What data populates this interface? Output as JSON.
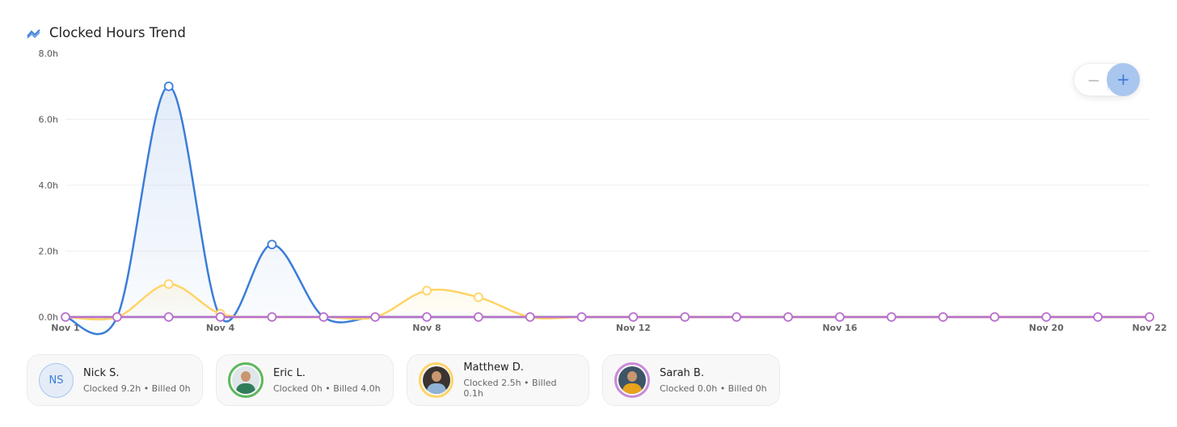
{
  "header": {
    "title": "Clocked Hours Trend",
    "icon": "trending-icon"
  },
  "zoom_controls": {
    "minus": "−",
    "plus": "+"
  },
  "chart_data": {
    "type": "line",
    "title": "Clocked Hours Trend",
    "x": [
      "Nov 1",
      "Nov 2",
      "Nov 3",
      "Nov 4",
      "Nov 5",
      "Nov 6",
      "Nov 7",
      "Nov 8",
      "Nov 9",
      "Nov 10",
      "Nov 11",
      "Nov 12",
      "Nov 13",
      "Nov 14",
      "Nov 15",
      "Nov 16",
      "Nov 17",
      "Nov 18",
      "Nov 19",
      "Nov 20",
      "Nov 21",
      "Nov 22"
    ],
    "x_tick_labels": [
      "Nov 1",
      "Nov 4",
      "Nov 8",
      "Nov 12",
      "Nov 16",
      "Nov 20",
      "Nov 22"
    ],
    "y_tick_labels": [
      "0.0h",
      "2.0h",
      "4.0h",
      "6.0h",
      "8.0h"
    ],
    "ylim": [
      0,
      8
    ],
    "grid": true,
    "curve": "smooth",
    "series": [
      {
        "name": "Nick S.",
        "color": "#3b7dd8",
        "values": [
          0,
          0,
          7.0,
          0,
          2.2,
          0,
          0,
          0,
          0,
          0,
          0,
          0,
          0,
          0,
          0,
          0,
          0,
          0,
          0,
          0,
          0,
          0
        ]
      },
      {
        "name": "Eric L.",
        "color": "#5cb85c",
        "values": [
          0,
          0,
          0,
          0,
          0,
          0,
          0,
          0,
          0,
          0,
          0,
          0,
          0,
          0,
          0,
          0,
          0,
          0,
          0,
          0,
          0,
          0
        ]
      },
      {
        "name": "Matthew D.",
        "color": "#ffd466",
        "values": [
          0,
          0,
          1.0,
          0.1,
          0,
          0,
          0,
          0.8,
          0.6,
          0,
          0,
          0,
          0,
          0,
          0,
          0,
          0,
          0,
          0,
          0,
          0,
          0
        ]
      },
      {
        "name": "Sarah B.",
        "color": "#b86fcc",
        "values": [
          0,
          0,
          0,
          0,
          0,
          0,
          0,
          0,
          0,
          0,
          0,
          0,
          0,
          0,
          0,
          0,
          0,
          0,
          0,
          0,
          0,
          0
        ]
      }
    ]
  },
  "legend": [
    {
      "name": "Nick S.",
      "initials": "NS",
      "stats": "Clocked 9.2h • Billed 0h",
      "color": "#a9c6ef"
    },
    {
      "name": "Eric L.",
      "stats": "Clocked 0h • Billed 4.0h",
      "color": "#5cb85c"
    },
    {
      "name": "Matthew D.",
      "stats": "Clocked 2.5h • Billed 0.1h",
      "color": "#ffd466"
    },
    {
      "name": "Sarah B.",
      "stats": "Clocked 0.0h • Billed 0h",
      "color": "#c98ad8"
    }
  ]
}
